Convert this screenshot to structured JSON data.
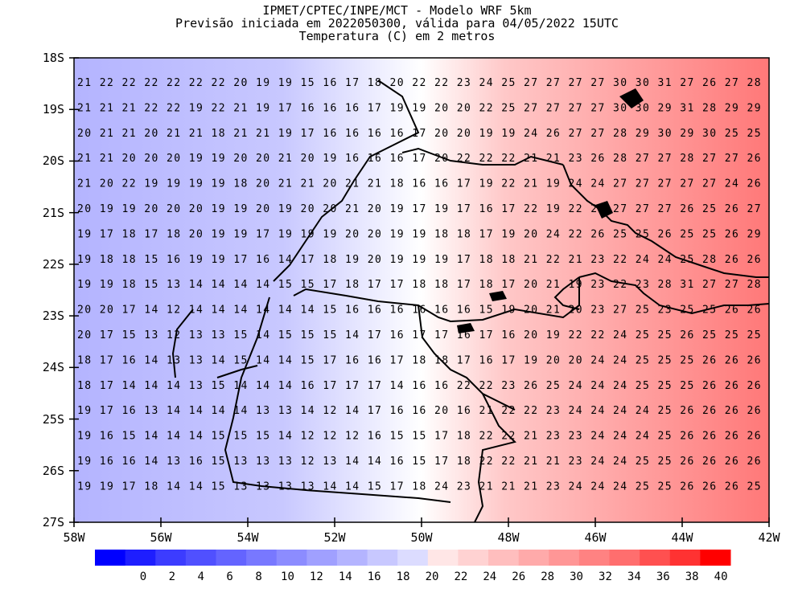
{
  "titles": {
    "line1": "IPMET/CPTEC/INPE/MCT - Modelo WRF 5km",
    "line2": "Previsão iniciada em 2022050300, válida para 04/05/2022 15UTC",
    "line3": "Temperatura (C) em 2 metros"
  },
  "map": {
    "lat_labels": [
      "18S",
      "19S",
      "20S",
      "21S",
      "22S",
      "23S",
      "24S",
      "25S",
      "26S",
      "27S"
    ],
    "lon_labels": [
      "58W",
      "56W",
      "54W",
      "52W",
      "50W",
      "48W",
      "46W",
      "44W",
      "42W"
    ],
    "value_rows": [
      "21 22 22 22 22 22 22 20 19 19 15 16 17 18 20 22 22 23 24 25 27 27 27 27 30 30 31 27 26 27 28",
      "21 21 21 22 22 19 22 21 19 17 16 16 16 17 19 19 20 20 22 25 27 27 27 27 30 30 29 31 28 29 29",
      "20 21 21 20 21 21 18 21 21 19 17 16 16 16 16 17 20 20 19 19 24 26 27 27 28 29 30 29 30 25 25",
      "21 21 20 20 20 19 19 20 20 21 20 19 16 16 16 17 20 22 22 22 21 21 23 26 28 27 27 28 27 27 26",
      "21 20 22 19 19 19 19 18 20 21 21 20 21 21 18 16 16 17 19 22 21 19 24 24 27 27 27 27 27 24 26",
      "20 19 19 20 20 20 19 19 20 19 20 20 21 20 19 17 19 17 16 17 22 19 22 24 27 27 27 26 25 26 27",
      "19 17 18 17 18 20 19 19 17 19 19 19 20 20 19 19 18 18 17 19 20 24 22 26 25 25 26 25 25 26 29",
      "19 18 18 15 16 19 19 17 16 14 17 18 19 20 19 19 19 17 18 18 21 22 21 23 22 24 24 25 28 26 26",
      "19 19 18 15 13 14 14 14 14 15 15 17 18 17 17 18 18 17 18 17 20 21 19 23 22 23 28 31 27 27 28",
      "20 20 17 14 12 14 14 14 14 14 14 15 16 16 16 16 16 16 15 19 20 21 20 23 27 25 23 25 25 26 26",
      "20 17 15 13 12 13 13 15 14 15 15 15 14 17 16 17 17 16 17 16 20 19 22 22 24 25 25 26 25 25 25",
      "18 17 16 14 13 13 14 15 14 14 15 17 16 16 17 18 18 17 16 17 19 20 20 24 24 25 25 25 26 26 26",
      "18 17 14 14 14 13 15 14 14 14 16 17 17 17 14 16 16 22 22 23 26 25 24 24 24 25 25 25 26 26 26",
      "19 17 16 13 14 14 14 14 13 13 14 12 14 17 16 16 20 16 21 22 22 23 24 24 24 24 25 26 26 26 26",
      "19 16 15 14 14 14 15 15 15 14 12 12 12 16 15 15 17 18 22 22 21 23 23 24 24 24 25 26 26 26 26",
      "19 16 16 14 13 16 15 13 13 13 12 13 14 14 16 15 17 18 22 22 21 21 23 24 24 25 25 26 26 26 26",
      "19 19 17 18 14 14 15 13 13 13 13 14 14 15 17 18 24 23 21 21 21 23 24 24 24 25 25 26 26 26 25"
    ],
    "map_colors": {
      "cold": "#c8c8ff",
      "cool": "#b4b4ff",
      "neutral": "#ffffff",
      "warm": "#ffc8c8",
      "hot": "#ff7878"
    }
  },
  "colorbar": {
    "labels": [
      "0",
      "2",
      "4",
      "6",
      "8",
      "10",
      "12",
      "14",
      "16",
      "18",
      "20",
      "22",
      "24",
      "26",
      "28",
      "30",
      "32",
      "34",
      "36",
      "38",
      "40"
    ],
    "colors": [
      "#0000ff",
      "#1e1eff",
      "#3c3cff",
      "#5050ff",
      "#6464ff",
      "#7878ff",
      "#8c8cff",
      "#a0a0ff",
      "#b4b4ff",
      "#c8c8ff",
      "#dcdcff",
      "#ffe6e6",
      "#ffd2d2",
      "#ffbebe",
      "#ffaaaa",
      "#ff9696",
      "#ff8282",
      "#ff6e6e",
      "#ff5050",
      "#ff3232",
      "#ff0000"
    ]
  }
}
